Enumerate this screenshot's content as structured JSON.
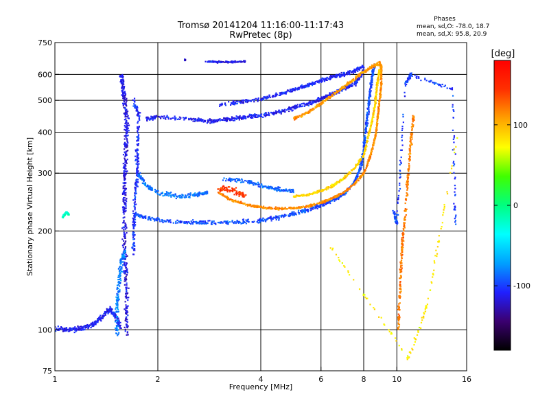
{
  "chart_data": {
    "type": "scatter",
    "title_line1": "Tromsø 20141204 11:16:00-11:17:43",
    "title_line2": "RwPretec (8p)",
    "stats": {
      "heading": "Phases",
      "o_line": "mean, sd,O: -78.0, 18.7",
      "x_line": "mean, sd,X:  95.8, 20.9"
    },
    "xlabel": "Frequency [MHz]",
    "ylabel": "Stationary phase Virtual Height [km]",
    "x_scale": "log",
    "y_scale": "log",
    "xlim": [
      1,
      16
    ],
    "ylim": [
      75,
      750
    ],
    "x_ticks": [
      {
        "value": 1,
        "label": "1"
      },
      {
        "value": 2,
        "label": "2"
      },
      {
        "value": 4,
        "label": "4"
      },
      {
        "value": 6,
        "label": "6"
      },
      {
        "value": 8,
        "label": "8"
      },
      {
        "value": 10,
        "label": "10"
      },
      {
        "value": 16,
        "label": "16"
      }
    ],
    "y_ticks": [
      {
        "value": 75,
        "label": "75"
      },
      {
        "value": 100,
        "label": "100"
      },
      {
        "value": 200,
        "label": "200"
      },
      {
        "value": 300,
        "label": "300"
      },
      {
        "value": 400,
        "label": "400"
      },
      {
        "value": 500,
        "label": "500"
      },
      {
        "value": 600,
        "label": "600"
      },
      {
        "value": 750,
        "label": "750"
      }
    ],
    "grid_x": [
      2,
      4,
      6,
      8,
      10
    ],
    "grid_y": [
      100,
      200,
      300,
      400,
      500,
      600
    ],
    "grid": true,
    "colorbar": {
      "title": "[deg]",
      "range": [
        -180,
        180
      ],
      "ticks": [
        {
          "value": 100,
          "label": "100"
        },
        {
          "value": 0,
          "label": "0"
        },
        {
          "value": -100,
          "label": "-100"
        }
      ],
      "colors": [
        "#000000",
        "#3b0070",
        "#2020ff",
        "#00a0ff",
        "#00ffff",
        "#00ff80",
        "#40ff00",
        "#ffff00",
        "#ffa000",
        "#ff3000",
        "#ff0000"
      ]
    },
    "traces": [
      {
        "name": "",
        "phase": -110,
        "spread": 0.025,
        "points": [
          [
            1.0,
            101
          ],
          [
            1.1,
            100
          ],
          [
            1.2,
            101
          ],
          [
            1.3,
            104
          ],
          [
            1.38,
            110
          ],
          [
            1.45,
            116
          ],
          [
            1.5,
            110
          ],
          [
            1.55,
            102
          ]
        ]
      },
      {
        "name": "",
        "phase": -115,
        "spread": 0.04,
        "points": [
          [
            1.62,
            95
          ],
          [
            1.62,
            120
          ],
          [
            1.61,
            150
          ],
          [
            1.6,
            180
          ],
          [
            1.6,
            220
          ],
          [
            1.6,
            260
          ],
          [
            1.6,
            300
          ],
          [
            1.61,
            350
          ],
          [
            1.62,
            400
          ],
          [
            1.62,
            450
          ],
          [
            1.6,
            500
          ],
          [
            1.58,
            550
          ],
          [
            1.56,
            600
          ]
        ]
      },
      {
        "name": "",
        "phase": -105,
        "spread": 0.03,
        "points": [
          [
            1.7,
            170
          ],
          [
            1.7,
            210
          ],
          [
            1.72,
            260
          ],
          [
            1.74,
            300
          ],
          [
            1.74,
            350
          ],
          [
            1.76,
            450
          ],
          [
            1.7,
            500
          ]
        ]
      },
      {
        "name": "",
        "phase": -95,
        "spread": 0.02,
        "points": [
          [
            1.72,
            225
          ],
          [
            1.9,
            218
          ],
          [
            2.2,
            214
          ],
          [
            2.6,
            212
          ],
          [
            3.0,
            212
          ],
          [
            3.5,
            213
          ],
          [
            4.0,
            215
          ],
          [
            4.5,
            220
          ],
          [
            5.0,
            226
          ],
          [
            5.5,
            232
          ],
          [
            6.0,
            240
          ],
          [
            6.5,
            248
          ],
          [
            7.0,
            260
          ],
          [
            7.5,
            280
          ],
          [
            7.8,
            310
          ],
          [
            8.0,
            350
          ],
          [
            8.1,
            400
          ],
          [
            8.2,
            450
          ],
          [
            8.3,
            500
          ],
          [
            8.4,
            560
          ],
          [
            8.5,
            610
          ],
          [
            8.6,
            640
          ]
        ]
      },
      {
        "name": "",
        "phase": -85,
        "spread": 0.022,
        "points": [
          [
            1.75,
            300
          ],
          [
            1.85,
            275
          ],
          [
            2.0,
            262
          ],
          [
            2.3,
            255
          ],
          [
            2.6,
            258
          ],
          [
            2.8,
            262
          ]
        ]
      },
      {
        "name": "",
        "phase": -110,
        "spread": 0.02,
        "points": [
          [
            1.85,
            440
          ],
          [
            2.0,
            445
          ],
          [
            2.5,
            438
          ],
          [
            2.8,
            432
          ],
          [
            3.0,
            435
          ],
          [
            3.3,
            440
          ],
          [
            3.6,
            445
          ],
          [
            4.0,
            450
          ],
          [
            4.5,
            460
          ],
          [
            5.0,
            475
          ],
          [
            5.5,
            490
          ],
          [
            6.0,
            505
          ],
          [
            6.5,
            525
          ],
          [
            7.0,
            545
          ],
          [
            7.5,
            560
          ],
          [
            7.8,
            590
          ],
          [
            8.0,
            620
          ]
        ]
      },
      {
        "name": "",
        "phase": -108,
        "spread": 0.018,
        "points": [
          [
            3.0,
            485
          ],
          [
            3.5,
            495
          ],
          [
            4.0,
            505
          ],
          [
            4.5,
            520
          ],
          [
            5.0,
            540
          ],
          [
            5.5,
            555
          ],
          [
            6.0,
            575
          ],
          [
            6.5,
            590
          ],
          [
            7.0,
            600
          ],
          [
            7.5,
            615
          ],
          [
            8.0,
            635
          ]
        ]
      },
      {
        "name": "",
        "phase": -88,
        "spread": 0.02,
        "points": [
          [
            3.1,
            288
          ],
          [
            3.6,
            285
          ],
          [
            4.0,
            275
          ],
          [
            4.5,
            268
          ],
          [
            5.0,
            265
          ]
        ]
      },
      {
        "name": "",
        "phase": 115,
        "spread": 0.012,
        "points": [
          [
            3.0,
            262
          ],
          [
            3.3,
            248
          ],
          [
            3.7,
            240
          ],
          [
            4.0,
            236
          ],
          [
            4.5,
            234
          ],
          [
            5.0,
            235
          ],
          [
            5.5,
            238
          ],
          [
            6.0,
            244
          ],
          [
            6.5,
            252
          ],
          [
            7.0,
            262
          ],
          [
            7.5,
            278
          ],
          [
            8.0,
            300
          ],
          [
            8.3,
            330
          ],
          [
            8.5,
            360
          ],
          [
            8.7,
            400
          ],
          [
            8.8,
            450
          ],
          [
            8.9,
            500
          ],
          [
            9.0,
            560
          ],
          [
            9.0,
            620
          ],
          [
            9.0,
            640
          ]
        ]
      },
      {
        "name": "",
        "phase": 88,
        "spread": 0.014,
        "points": [
          [
            5.0,
            255
          ],
          [
            5.5,
            258
          ],
          [
            6.0,
            265
          ],
          [
            6.5,
            275
          ],
          [
            7.0,
            290
          ],
          [
            7.5,
            310
          ],
          [
            8.0,
            340
          ],
          [
            8.2,
            380
          ],
          [
            8.4,
            420
          ],
          [
            8.6,
            470
          ],
          [
            8.7,
            530
          ],
          [
            8.8,
            580
          ],
          [
            8.9,
            620
          ]
        ]
      },
      {
        "name": "",
        "phase": 110,
        "spread": 0.015,
        "points": [
          [
            5.0,
            440
          ],
          [
            5.5,
            460
          ],
          [
            6.0,
            490
          ],
          [
            6.5,
            520
          ],
          [
            7.0,
            550
          ],
          [
            7.5,
            580
          ],
          [
            8.0,
            610
          ],
          [
            8.5,
            635
          ],
          [
            8.9,
            650
          ],
          [
            9.0,
            620
          ]
        ]
      },
      {
        "name": "",
        "phase": 145,
        "spread": 0.03,
        "points": [
          [
            3.0,
            270
          ],
          [
            3.3,
            268
          ],
          [
            3.6,
            255
          ]
        ]
      },
      {
        "name": "",
        "phase": -115,
        "spread": 0.008,
        "points": [
          [
            2.75,
            657
          ],
          [
            3.0,
            655
          ],
          [
            3.3,
            655
          ],
          [
            3.6,
            658
          ]
        ]
      },
      {
        "name": "",
        "phase": -115,
        "spread": 0.008,
        "points": [
          [
            2.4,
            665
          ]
        ]
      },
      {
        "name": "",
        "phase": -20,
        "spread": 0.01,
        "points": [
          [
            1.05,
            220
          ],
          [
            1.08,
            228
          ],
          [
            1.1,
            224
          ]
        ]
      },
      {
        "name": "",
        "phase": -80,
        "spread": 0.035,
        "points": [
          [
            1.52,
            96
          ],
          [
            1.52,
            120
          ],
          [
            1.54,
            140
          ],
          [
            1.56,
            160
          ],
          [
            1.6,
            175
          ]
        ]
      },
      {
        "name": "",
        "phase": 120,
        "spread": 0.02,
        "points": [
          [
            10.1,
            100
          ],
          [
            10.2,
            130
          ],
          [
            10.3,
            160
          ],
          [
            10.4,
            190
          ],
          [
            10.6,
            230
          ],
          [
            10.8,
            300
          ],
          [
            11.0,
            380
          ],
          [
            11.2,
            450
          ]
        ]
      },
      {
        "name": "",
        "phase": -100,
        "spread": 0.02,
        "points": [
          [
            9.8,
            230
          ],
          [
            10.0,
            210
          ],
          [
            10.6,
            560
          ],
          [
            11.0,
            600
          ],
          [
            14.6,
            540
          ],
          [
            14.8,
            210
          ]
        ]
      },
      {
        "name": "",
        "phase": 80,
        "spread": 0.02,
        "points": [
          [
            6.3,
            183
          ],
          [
            10.8,
            82
          ],
          [
            12.3,
            120
          ],
          [
            15.0,
            390
          ]
        ]
      }
    ]
  }
}
